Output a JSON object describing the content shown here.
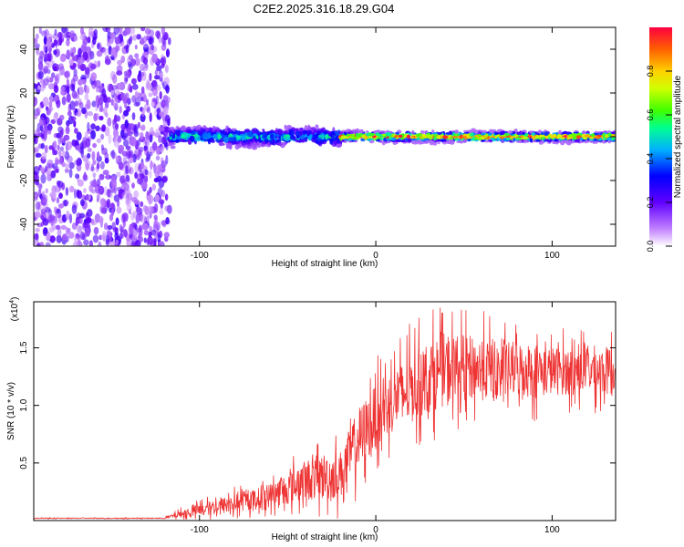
{
  "title": "C2E2.2025.316.18.29.G04",
  "chart_data": [
    {
      "type": "heatmap",
      "name": "spectrogram",
      "xlabel": "Height of straight line (km)",
      "ylabel": "Frequency (Hz)",
      "xlim": [
        -194,
        136
      ],
      "ylim": [
        -50,
        50
      ],
      "xticks": [
        -100,
        0,
        100
      ],
      "yticks": [
        -40,
        -20,
        0,
        20,
        40
      ],
      "colorbar": {
        "label": "Normalized spectral amplitude",
        "range": [
          0,
          1
        ],
        "ticks": [
          0.0,
          0.2,
          0.4,
          0.6,
          0.8
        ],
        "tick_labels": [
          "0.0",
          "0.2",
          "0.4",
          "0.6",
          "0.8"
        ],
        "colormap": [
          "#ffffff",
          "#8000ff",
          "#0000ff",
          "#00c0ff",
          "#00ff80",
          "#80ff00",
          "#ffff00",
          "#ff8000",
          "#ff0040"
        ]
      },
      "regions": [
        {
          "x_range": [
            -194,
            -117
          ],
          "freq_range": [
            -50,
            50
          ],
          "amplitude": 0.2,
          "description": "broadband noise"
        },
        {
          "x_range": [
            -117,
            -20
          ],
          "freq_center": 0,
          "freq_halfwidth": 5,
          "amplitude_max": 0.5
        },
        {
          "x_range": [
            -20,
            136
          ],
          "freq_center": 0,
          "freq_halfwidth": 3,
          "amplitude_max": 1.0
        }
      ]
    },
    {
      "type": "line",
      "name": "snr",
      "xlabel": "Height of straight line (km)",
      "ylabel": "SNR (10 * v/v)",
      "multiplier": "(x10^4)",
      "multiplier_base": "(x10",
      "multiplier_exp": "4",
      "multiplier_close": ")",
      "xlim": [
        -194,
        136
      ],
      "ylim": [
        0,
        1.9
      ],
      "xticks": [
        -100,
        0,
        100
      ],
      "yticks": [
        0.5,
        1.0,
        1.5
      ],
      "ytick_labels": [
        "0.5",
        "1.0",
        "1.5"
      ],
      "color": "#ee3333",
      "envelope": {
        "x": [
          -194,
          -120,
          -110,
          -100,
          -90,
          -80,
          -70,
          -60,
          -50,
          -40,
          -30,
          -20,
          -15,
          -10,
          -5,
          0,
          10,
          20,
          30,
          40,
          50,
          60,
          70,
          80,
          90,
          100,
          110,
          120,
          130,
          136
        ],
        "mean": [
          0.02,
          0.02,
          0.06,
          0.09,
          0.12,
          0.15,
          0.18,
          0.22,
          0.28,
          0.35,
          0.38,
          0.4,
          0.55,
          0.7,
          0.8,
          0.9,
          1.05,
          1.15,
          1.25,
          1.32,
          1.33,
          1.32,
          1.3,
          1.32,
          1.3,
          1.3,
          1.3,
          1.32,
          1.3,
          1.3
        ],
        "spread": [
          0.005,
          0.005,
          0.05,
          0.08,
          0.1,
          0.12,
          0.12,
          0.15,
          0.2,
          0.25,
          0.3,
          0.3,
          0.35,
          0.4,
          0.4,
          0.4,
          0.4,
          0.45,
          0.45,
          0.45,
          0.4,
          0.4,
          0.35,
          0.35,
          0.35,
          0.3,
          0.3,
          0.3,
          0.3,
          0.3
        ]
      }
    }
  ]
}
